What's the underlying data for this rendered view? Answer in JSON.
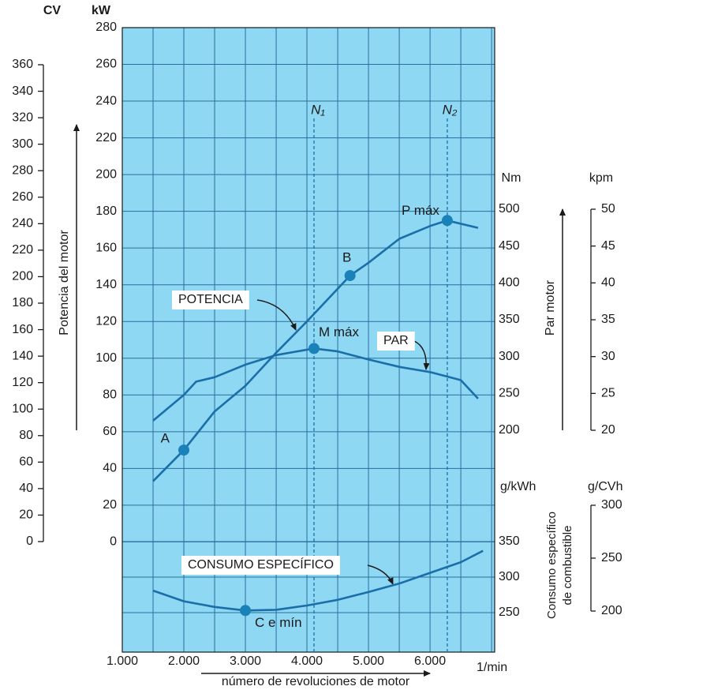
{
  "chart_data": {
    "type": "line",
    "x_title": "número de revoluciones de motor",
    "x_unit": "1/min",
    "y_title": "kW",
    "xlim": [
      1000,
      7050
    ],
    "xticks": [
      {
        "value": 1000,
        "label": "1.000"
      },
      {
        "value": 2000,
        "label": "2.000"
      },
      {
        "value": 3000,
        "label": "3.000"
      },
      {
        "value": 4000,
        "label": "4.000"
      },
      {
        "value": 5000,
        "label": "5.000"
      },
      {
        "value": 6000,
        "label": "6.000"
      }
    ],
    "ylim": [
      -60,
      280
    ],
    "yticks": [
      0,
      20,
      40,
      60,
      80,
      100,
      120,
      140,
      160,
      180,
      200,
      220,
      240,
      260,
      280
    ],
    "grid": true,
    "extra_axes": [
      {
        "title": "CV",
        "lim": [
          0,
          360
        ],
        "ticks": [
          0,
          20,
          40,
          60,
          80,
          100,
          120,
          140,
          160,
          180,
          200,
          220,
          240,
          260,
          280,
          300,
          320,
          340,
          360
        ]
      },
      {
        "title": "Nm",
        "lim": [
          200,
          500
        ],
        "ticks": [
          200,
          250,
          300,
          350,
          400,
          450,
          500
        ]
      },
      {
        "title": "kpm",
        "lim": [
          20,
          50
        ],
        "ticks": [
          20,
          25,
          30,
          35,
          40,
          45,
          50
        ]
      },
      {
        "title": "g/kWh",
        "lim": [
          250,
          350
        ],
        "ticks": [
          250,
          300,
          350
        ]
      },
      {
        "title": "g/CVh",
        "lim": [
          200,
          300
        ],
        "ticks": [
          200,
          250,
          300
        ]
      }
    ],
    "quantity_labels": [
      "Potencia del motor",
      "Par motor",
      "Consumo específico",
      "de combustible"
    ],
    "series": [
      {
        "name": "POTENCIA",
        "axis": "kW",
        "color": "#1a6fa8",
        "x": [
          1500,
          2000,
          2500,
          3000,
          3500,
          4000,
          4700,
          5000,
          5500,
          6000,
          6280,
          6780
        ],
        "values": [
          33,
          50,
          71,
          85,
          103,
          120,
          145,
          152,
          165,
          172,
          175,
          171
        ]
      },
      {
        "name": "PAR",
        "axis": "Nm",
        "color": "#1a6fa8",
        "x": [
          1500,
          2000,
          2200,
          2500,
          3000,
          3500,
          4115,
          4500,
          5000,
          5500,
          6000,
          6500,
          6780
        ],
        "values": [
          213,
          248,
          266,
          272,
          289,
          302,
          311,
          307,
          296,
          286,
          279,
          268,
          243
        ]
      },
      {
        "name": "CONSUMO ESPECÍFICO",
        "axis": "g/kWh",
        "color": "#1a6fa8",
        "x": [
          1500,
          2000,
          2500,
          3000,
          3500,
          4000,
          4500,
          5000,
          5500,
          6000,
          6500,
          6860
        ],
        "values": [
          281,
          266,
          258,
          253,
          254,
          260,
          268,
          279,
          291,
          306,
          321,
          337
        ]
      }
    ],
    "points": [
      {
        "label": "A",
        "axis": "kW",
        "x": 2000,
        "y": 50
      },
      {
        "label": "B",
        "axis": "kW",
        "x": 4700,
        "y": 145
      },
      {
        "label": "P máx",
        "axis": "kW",
        "x": 6280,
        "y": 175
      },
      {
        "label": "M máx",
        "axis": "Nm",
        "x": 4115,
        "y": 311
      },
      {
        "label": "C e mín",
        "axis": "g/kWh",
        "x": 3000,
        "y": 253
      }
    ],
    "vlines": [
      {
        "label": "N₁",
        "x": 4115
      },
      {
        "label": "N₂",
        "x": 6280
      }
    ]
  }
}
